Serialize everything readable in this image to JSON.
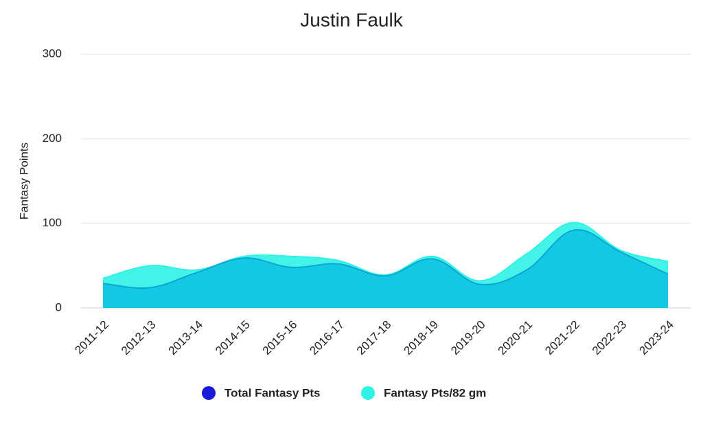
{
  "chart_data": {
    "type": "area",
    "title": "Justin Faulk",
    "y_label": "Fantasy Points",
    "categories": [
      "2011-12",
      "2012-13",
      "2013-14",
      "2014-15",
      "2015-16",
      "2016-17",
      "2017-18",
      "2018-19",
      "2019-20",
      "2020-21",
      "2021-22",
      "2022-23",
      "2023-24"
    ],
    "series": [
      {
        "name": "Total Fantasy Pts",
        "color": "#1a1adb",
        "values": [
          29,
          24,
          42,
          59,
          48,
          52,
          38,
          58,
          28,
          45,
          92,
          66,
          40
        ]
      },
      {
        "name": "Fantasy Pts/82 gm",
        "color": "#2ff2e6",
        "values": [
          35,
          50,
          45,
          61,
          61,
          56,
          39,
          61,
          32,
          64,
          101,
          68,
          55
        ]
      }
    ],
    "ylim": [
      0,
      300
    ],
    "yticks": [
      0,
      100,
      200,
      300
    ],
    "grid": true,
    "legend": "bottom"
  }
}
